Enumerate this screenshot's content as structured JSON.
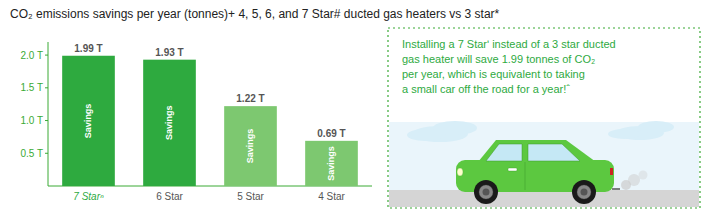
{
  "chart_data": {
    "type": "bar",
    "title": "CO₂ emissions savings per year (tonnes)+ 4, 5, 6, and 7 Star# ducted gas heaters vs 3 star*",
    "categories": [
      "7 Starⁿ",
      "6 Star",
      "5 Star",
      "4 Star"
    ],
    "values": [
      1.99,
      1.93,
      1.22,
      0.69
    ],
    "value_labels": [
      "1.99 T",
      "1.93 T",
      "1.22 T",
      "0.69 T"
    ],
    "data_labels": true,
    "colors": [
      "#2eaa3f",
      "#2eaa3f",
      "#7dc870",
      "#7dc870"
    ],
    "bar_label": "Savings",
    "ylim": [
      0,
      2.2
    ],
    "yticks": [
      {
        "value": 0.5,
        "label": "0.5 T"
      },
      {
        "value": 1.0,
        "label": "1.0 T"
      },
      {
        "value": 1.5,
        "label": "1.5 T"
      },
      {
        "value": 2.0,
        "label": "2.0 T"
      }
    ],
    "grid": false,
    "annotations": [
      "Installing a 7 Starʹ instead of a 3 star ducted",
      "gas heater will save 1.99 tonnes of CO₂",
      "per year, which is equivalent to taking",
      "a small car off the road for a year!ˆ"
    ]
  }
}
